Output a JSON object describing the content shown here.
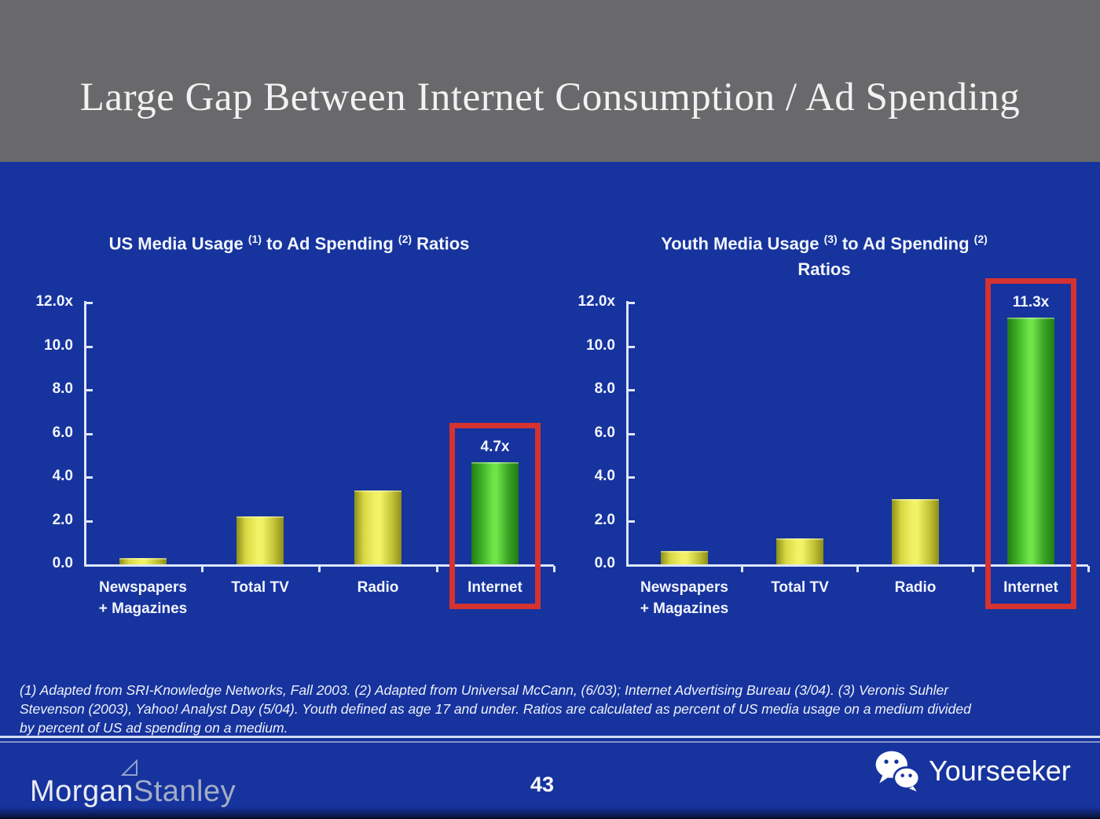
{
  "slide_title": "Large Gap Between Internet Consumption / Ad Spending",
  "charts": [
    {
      "title_segments": [
        {
          "text": "US Media Usage "
        },
        {
          "text": "(1)",
          "sup": true
        },
        {
          "text": " to Ad Spending "
        },
        {
          "text": "(2)",
          "sup": true
        },
        {
          "text": " Ratios"
        }
      ],
      "title_line2": null,
      "ytick_labels_top_down": [
        "12.0x",
        "10.0",
        "8.0",
        "6.0",
        "4.0",
        "2.0",
        "0.0"
      ],
      "category_labels": [
        [
          "Newspapers",
          "+ Magazines"
        ],
        [
          "Total TV"
        ],
        [
          "Radio"
        ],
        [
          "Internet"
        ]
      ],
      "data_label_text": "4.7x"
    },
    {
      "title_segments": [
        {
          "text": "Youth Media Usage "
        },
        {
          "text": "(3)",
          "sup": true
        },
        {
          "text": " to Ad Spending "
        },
        {
          "text": "(2)",
          "sup": true
        }
      ],
      "title_line2": "Ratios",
      "ytick_labels_top_down": [
        "12.0x",
        "10.0",
        "8.0",
        "6.0",
        "4.0",
        "2.0",
        "0.0"
      ],
      "category_labels": [
        [
          "Newspapers",
          "+ Magazines"
        ],
        [
          "Total TV"
        ],
        [
          "Radio"
        ],
        [
          "Internet"
        ]
      ],
      "data_label_text": "11.3x"
    }
  ],
  "chart_data": [
    {
      "type": "bar",
      "title": "US Media Usage (1) to Ad Spending (2) Ratios",
      "categories": [
        "Newspapers + Magazines",
        "Total TV",
        "Radio",
        "Internet"
      ],
      "values": [
        0.3,
        2.2,
        3.4,
        4.7
      ],
      "bar_palette": [
        "yellow",
        "yellow",
        "yellow",
        "green"
      ],
      "highlight_index": 3,
      "data_labels": {
        "3": "4.7x"
      },
      "xlabel": "",
      "ylabel": "",
      "ylim": [
        0,
        12
      ],
      "yticks": [
        0,
        2,
        4,
        6,
        8,
        10,
        12
      ],
      "grid": false,
      "legend": null
    },
    {
      "type": "bar",
      "title": "Youth Media Usage (3) to Ad Spending (2) Ratios",
      "categories": [
        "Newspapers + Magazines",
        "Total TV",
        "Radio",
        "Internet"
      ],
      "values": [
        0.6,
        1.2,
        3.0,
        11.3
      ],
      "bar_palette": [
        "yellow",
        "yellow",
        "yellow",
        "green"
      ],
      "highlight_index": 3,
      "data_labels": {
        "3": "11.3x"
      },
      "xlabel": "",
      "ylabel": "",
      "ylim": [
        0,
        12
      ],
      "yticks": [
        0,
        2,
        4,
        6,
        8,
        10,
        12
      ],
      "grid": false,
      "legend": null
    }
  ],
  "footnote_lines": [
    "(1) Adapted from SRI-Knowledge Networks, Fall 2003.  (2) Adapted from Universal McCann, (6/03); Internet Advertising Bureau (3/04). (3) Veronis Suhler",
    "Stevenson (2003), Yahoo! Analyst Day (5/04).  Youth defined as age 17 and under.  Ratios are calculated as percent of US media usage on a medium divided",
    "by percent of US ad spending on a medium."
  ],
  "footer": {
    "page_number": "43",
    "brand_morgan": "Morgan",
    "brand_stanley": "Stanley",
    "brand_right": "Yourseeker"
  },
  "colors": {
    "background_blue": "#16339E",
    "header_gray": "#69696B",
    "axis_line": "#DDE6F8",
    "text_white": "#F2F5FB",
    "bar_yellow_mid": "#F2F266",
    "bar_yellow_edge": "#8E8E18",
    "bar_green_mid": "#6FE34A",
    "bar_green_edge": "#217C12",
    "highlight_red": "#D43330"
  }
}
